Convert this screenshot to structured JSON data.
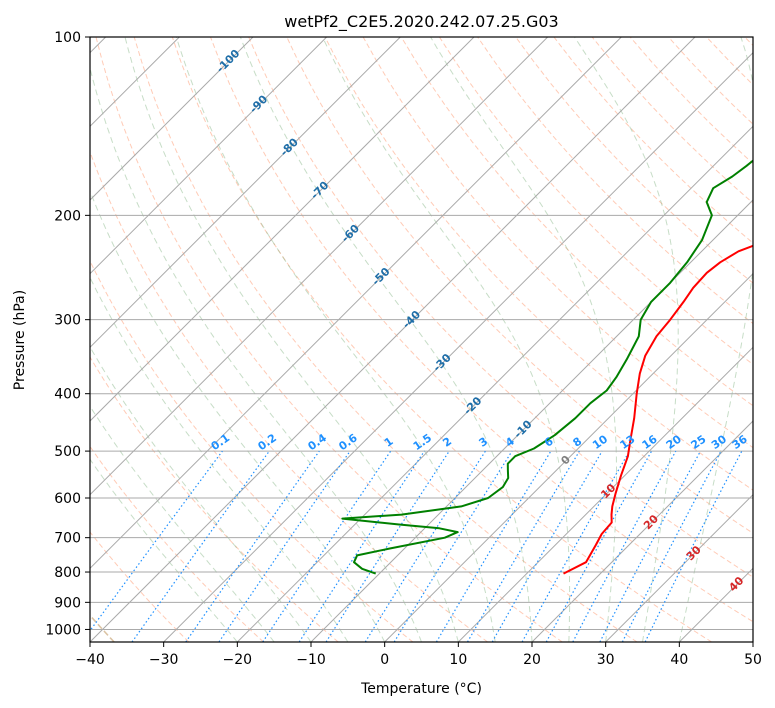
{
  "chart_data": {
    "type": "line",
    "title": "wetPf2_C2E5.2020.242.07.25.G03",
    "xlabel": "Temperature (°C)",
    "ylabel": "Pressure (hPa)",
    "xlim": [
      -40,
      50
    ],
    "ylim": [
      1050,
      100
    ],
    "y_scale": "log",
    "grid": true,
    "x_ticks": [
      -40,
      -30,
      -20,
      -10,
      0,
      10,
      20,
      30,
      40,
      50
    ],
    "x_tick_labels": [
      "−40",
      "−30",
      "−20",
      "−10",
      "0",
      "10",
      "20",
      "30",
      "40",
      "50"
    ],
    "y_ticks": [
      100,
      200,
      300,
      400,
      500,
      600,
      700,
      800,
      900,
      1000
    ],
    "y_tick_labels": [
      "100",
      "200",
      "300",
      "400",
      "500",
      "600",
      "700",
      "800",
      "900",
      "1000"
    ],
    "series": [
      {
        "color": "#ff0000",
        "points": [
          [
            15.0,
            805
          ],
          [
            16.5,
            770
          ],
          [
            15.5,
            720
          ],
          [
            14.8,
            690
          ],
          [
            14.6,
            660
          ],
          [
            13.5,
            640
          ],
          [
            12.5,
            620
          ],
          [
            11.2,
            590
          ],
          [
            9.5,
            550
          ],
          [
            7.8,
            510
          ],
          [
            6.0,
            480
          ],
          [
            3.5,
            440
          ],
          [
            0.5,
            400
          ],
          [
            -1.8,
            370
          ],
          [
            -3.5,
            345
          ],
          [
            -4.6,
            320
          ],
          [
            -5.0,
            300
          ],
          [
            -5.6,
            280
          ],
          [
            -6.2,
            265
          ],
          [
            -6.4,
            250
          ],
          [
            -6.0,
            240
          ],
          [
            -5.0,
            230
          ],
          [
            -2.5,
            220
          ],
          [
            0.0,
            210
          ],
          [
            2.0,
            200
          ],
          [
            3.5,
            190
          ],
          [
            4.5,
            180
          ],
          [
            5.5,
            170
          ],
          [
            6.0,
            160
          ],
          [
            7.0,
            150
          ],
          [
            9.0,
            140
          ],
          [
            10.0,
            130
          ],
          [
            10.0,
            120
          ],
          [
            10.0,
            110
          ],
          [
            11.0,
            100
          ]
        ]
      },
      {
        "color": "#008000",
        "points": [
          [
            -10.5,
            805
          ],
          [
            -13.0,
            790
          ],
          [
            -15.0,
            770
          ],
          [
            -15.5,
            750
          ],
          [
            -12.0,
            730
          ],
          [
            -6.0,
            700
          ],
          [
            -5.0,
            685
          ],
          [
            -8.0,
            675
          ],
          [
            -14.0,
            665
          ],
          [
            -22.5,
            650
          ],
          [
            -15.0,
            640
          ],
          [
            -8.0,
            620
          ],
          [
            -5.5,
            600
          ],
          [
            -5.0,
            575
          ],
          [
            -5.5,
            555
          ],
          [
            -6.5,
            540
          ],
          [
            -7.5,
            525
          ],
          [
            -7.5,
            510
          ],
          [
            -6.0,
            495
          ],
          [
            -5.0,
            470
          ],
          [
            -4.5,
            440
          ],
          [
            -4.5,
            415
          ],
          [
            -4.0,
            395
          ],
          [
            -4.5,
            375
          ],
          [
            -5.5,
            350
          ],
          [
            -7.0,
            320
          ],
          [
            -9.0,
            300
          ],
          [
            -10.0,
            280
          ],
          [
            -10.0,
            260
          ],
          [
            -10.5,
            240
          ],
          [
            -11.5,
            220
          ],
          [
            -13.5,
            200
          ],
          [
            -16.0,
            190
          ],
          [
            -17.0,
            180
          ],
          [
            -16.0,
            172
          ],
          [
            -15.5,
            165
          ],
          [
            -15.0,
            155
          ],
          [
            -14.5,
            145
          ],
          [
            -14.0,
            138
          ],
          [
            -12.0,
            130
          ],
          [
            -9.0,
            120
          ],
          [
            -6.0,
            110
          ],
          [
            -4.5,
            100
          ]
        ]
      }
    ],
    "isotherm_labels": [
      "-100",
      "-90",
      "-80",
      "-70",
      "-60",
      "-50",
      "-40",
      "-30",
      "-20",
      "-10",
      "0",
      "10",
      "20",
      "30",
      "40"
    ],
    "mixing_ratio_labels": [
      "0.1",
      "0.2",
      "0.4",
      "0.6",
      "1",
      "1.5",
      "2",
      "3",
      "4",
      "6",
      "8",
      "10",
      "13",
      "16",
      "20",
      "25",
      "30",
      "36"
    ],
    "colors": {
      "temperature": "#ff0000",
      "dewpoint": "#008000",
      "isotherm_grid": "#aaaaaa",
      "dry_adiabat": "#ffa07a",
      "moist_adiabat": "#8fbc8f",
      "mixing_ratio": "#1e90ff",
      "isotherm_label_cold": "#1f6ea8",
      "isotherm_label_zero": "#808080",
      "isotherm_label_warm": "#d62728",
      "dry_adiabat_outer": "#d2b48c"
    }
  }
}
